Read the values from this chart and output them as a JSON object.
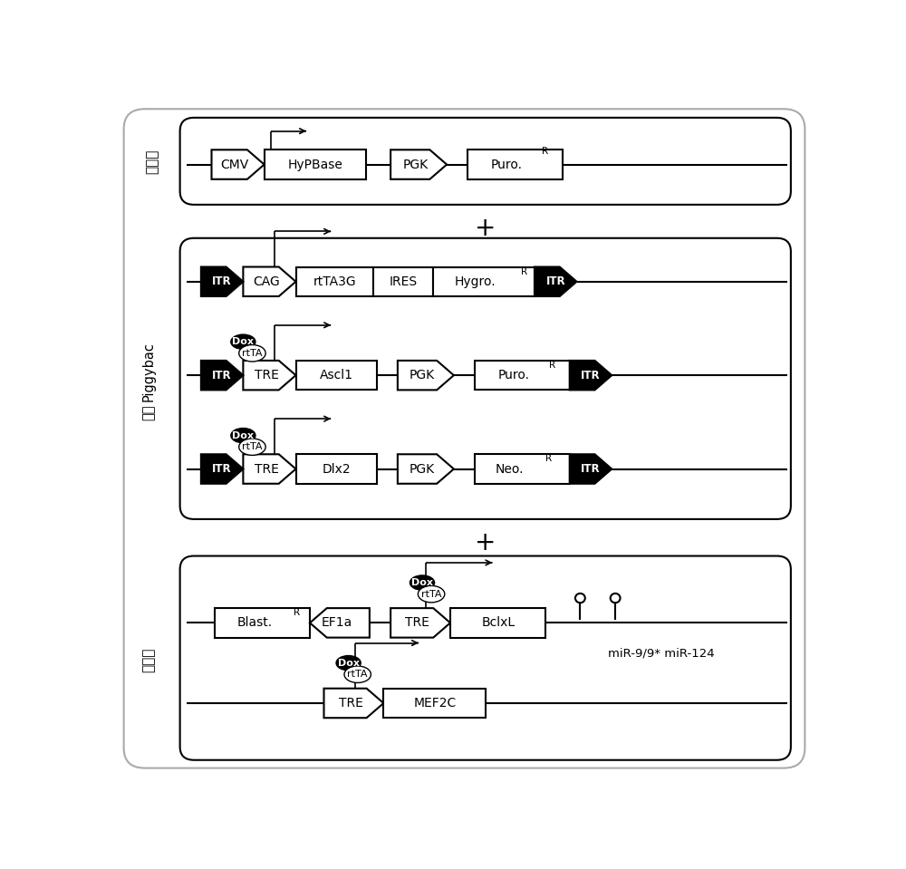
{
  "white": "#ffffff",
  "black": "#000000",
  "gray_border": "#999999",
  "title1": "转座酶",
  "title2_line1": "Piggybac",
  "title2_line2": "载体",
  "title3": "慢病毒",
  "mir_label": "miR-9/9* miR-124",
  "fig_w": 10.0,
  "fig_h": 9.59
}
